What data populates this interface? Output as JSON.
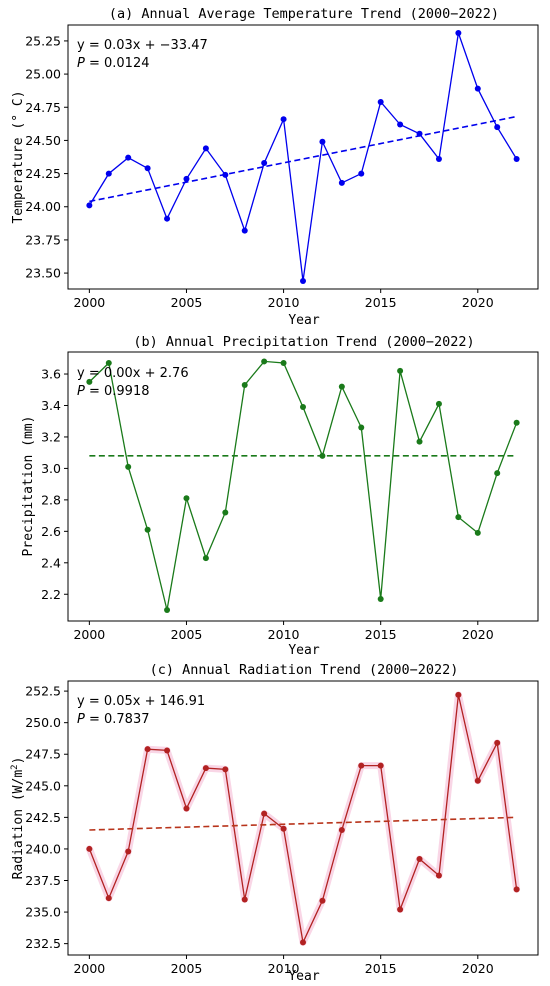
{
  "chart_data": [
    {
      "type": "line",
      "title": "(a) Annual Average Temperature Trend (2000−2022)",
      "xlabel": "Year",
      "ylabel": "Temperature (° C)",
      "xlim": [
        1998.9,
        2023.1
      ],
      "ylim": [
        23.38,
        25.37
      ],
      "xticks": [
        2000,
        2005,
        2010,
        2015,
        2020
      ],
      "xtick_labels": [
        "2000",
        "2005",
        "2010",
        "2015",
        "2020"
      ],
      "yticks": [
        23.5,
        23.75,
        24.0,
        24.25,
        24.5,
        24.75,
        25.0,
        25.25
      ],
      "ytick_labels": [
        "23.50",
        "23.75",
        "24.00",
        "24.25",
        "24.50",
        "24.75",
        "25.00",
        "25.25"
      ],
      "x": [
        2000,
        2001,
        2002,
        2003,
        2004,
        2005,
        2006,
        2007,
        2008,
        2009,
        2010,
        2011,
        2012,
        2013,
        2014,
        2015,
        2016,
        2017,
        2018,
        2019,
        2020,
        2021,
        2022
      ],
      "series": [
        {
          "values": [
            24.01,
            24.25,
            24.37,
            24.29,
            23.91,
            24.21,
            24.44,
            24.24,
            23.82,
            24.33,
            24.66,
            23.44,
            24.49,
            24.18,
            24.25,
            24.79,
            24.62,
            24.55,
            24.36,
            25.31,
            24.89,
            24.6,
            24.36
          ],
          "color": "#0000ee"
        }
      ],
      "trend": {
        "x": [
          2000,
          2022
        ],
        "y": [
          24.04,
          24.68
        ],
        "color": "#0000ee",
        "style": "dashed"
      },
      "annotation_eq": "y = 0.03x + −33.47",
      "annotation_p_label": "P",
      "annotation_p_value": " = 0.0124",
      "grid": false
    },
    {
      "type": "line",
      "title": "(b) Annual Precipitation Trend (2000−2022)",
      "xlabel": "Year",
      "ylabel": "Precipitation (mm)",
      "xlim": [
        1998.9,
        2023.1
      ],
      "ylim": [
        2.03,
        3.74
      ],
      "xticks": [
        2000,
        2005,
        2010,
        2015,
        2020
      ],
      "xtick_labels": [
        "2000",
        "2005",
        "2010",
        "2015",
        "2020"
      ],
      "yticks": [
        2.2,
        2.4,
        2.6,
        2.8,
        3.0,
        3.2,
        3.4,
        3.6
      ],
      "ytick_labels": [
        "2.2",
        "2.4",
        "2.6",
        "2.8",
        "3.0",
        "3.2",
        "3.4",
        "3.6"
      ],
      "x": [
        2000,
        2001,
        2002,
        2003,
        2004,
        2005,
        2006,
        2007,
        2008,
        2009,
        2010,
        2011,
        2012,
        2013,
        2014,
        2015,
        2016,
        2017,
        2018,
        2019,
        2020,
        2021,
        2022
      ],
      "series": [
        {
          "values": [
            3.55,
            3.67,
            3.01,
            2.61,
            2.1,
            2.81,
            2.43,
            2.72,
            3.53,
            3.68,
            3.67,
            3.39,
            3.08,
            3.52,
            3.26,
            2.17,
            3.62,
            3.17,
            3.41,
            2.69,
            2.59,
            2.97,
            3.29
          ],
          "color": "#1a7a1a"
        }
      ],
      "trend": {
        "x": [
          2000,
          2022
        ],
        "y": [
          3.08,
          3.08
        ],
        "color": "#1a7a1a",
        "style": "dashed"
      },
      "annotation_eq": "y = 0.00x + 2.76",
      "annotation_p_label": "P",
      "annotation_p_value": " = 0.9918",
      "grid": false
    },
    {
      "type": "line",
      "title": "(c) Annual Radiation Trend (2000−2022)",
      "xlabel": "Year",
      "ylabel_main": "Radiation (W/m",
      "ylabel_sup": "2",
      "ylabel_end": ")",
      "xlim": [
        1998.9,
        2023.1
      ],
      "ylim": [
        231.6,
        253.3
      ],
      "xticks": [
        2000,
        2005,
        2010,
        2015,
        2020
      ],
      "xtick_labels": [
        "2000",
        "2005",
        "2010",
        "2015",
        "2020"
      ],
      "yticks": [
        232.5,
        235.0,
        237.5,
        240.0,
        242.5,
        245.0,
        247.5,
        250.0,
        252.5
      ],
      "ytick_labels": [
        "232.5",
        "235.0",
        "237.5",
        "240.0",
        "242.5",
        "245.0",
        "247.5",
        "250.0",
        "252.5"
      ],
      "x": [
        2000,
        2001,
        2002,
        2003,
        2004,
        2005,
        2006,
        2007,
        2008,
        2009,
        2010,
        2011,
        2012,
        2013,
        2014,
        2015,
        2016,
        2017,
        2018,
        2019,
        2020,
        2021,
        2022
      ],
      "series": [
        {
          "values": [
            240.0,
            236.1,
            239.8,
            247.9,
            247.8,
            243.2,
            246.4,
            246.3,
            236.0,
            242.8,
            241.6,
            232.6,
            235.9,
            241.5,
            246.6,
            246.6,
            235.2,
            239.2,
            237.9,
            252.2,
            245.4,
            248.4,
            236.8
          ],
          "color": "#b22222"
        }
      ],
      "trend": {
        "x": [
          2000,
          2022
        ],
        "y": [
          241.5,
          242.5
        ],
        "color": "#b8341b",
        "style": "dashed"
      },
      "highlight_color": "#f9d6e6",
      "annotation_eq": "y = 0.05x + 146.91",
      "annotation_p_label": "P",
      "annotation_p_value": " = 0.7837",
      "grid": false
    }
  ]
}
